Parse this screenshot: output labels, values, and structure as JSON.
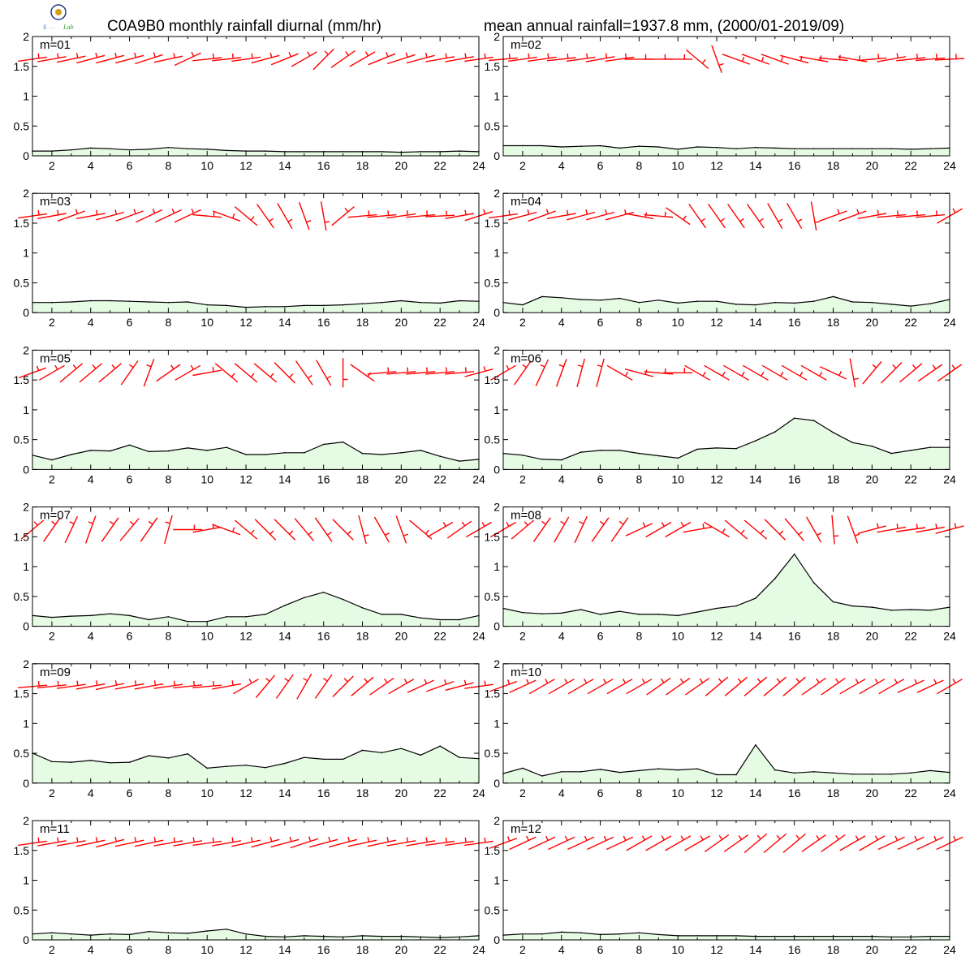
{
  "header": {
    "left_title": "C0A9B0 monthly rainfall diurnal (mm/hr)",
    "right_title": "mean annual rainfall=1937.8 mm, (2000/01-2019/09)"
  },
  "colors": {
    "rain_fill": "#e6fbe3",
    "rain_line": "#000000",
    "wind_barb": "#ff0000"
  },
  "chart_data": [
    {
      "type": "area",
      "label": "m=01",
      "x": [
        1,
        2,
        3,
        4,
        5,
        6,
        7,
        8,
        9,
        10,
        11,
        12,
        13,
        14,
        15,
        16,
        17,
        18,
        19,
        20,
        21,
        22,
        23,
        24
      ],
      "values": [
        0.08,
        0.08,
        0.1,
        0.13,
        0.12,
        0.1,
        0.11,
        0.14,
        0.12,
        0.11,
        0.09,
        0.08,
        0.08,
        0.07,
        0.07,
        0.07,
        0.07,
        0.07,
        0.07,
        0.06,
        0.07,
        0.07,
        0.08,
        0.07
      ],
      "wind_angle_deg": [
        8,
        10,
        12,
        15,
        15,
        15,
        18,
        12,
        25,
        6,
        6,
        8,
        15,
        22,
        30,
        45,
        35,
        30,
        22,
        18,
        15,
        10,
        10,
        8
      ],
      "xlim": [
        1,
        24
      ],
      "ylim": [
        0,
        2
      ]
    },
    {
      "type": "area",
      "label": "m=02",
      "x": [
        1,
        2,
        3,
        4,
        5,
        6,
        7,
        8,
        9,
        10,
        11,
        12,
        13,
        14,
        15,
        16,
        17,
        18,
        19,
        20,
        21,
        22,
        23,
        24
      ],
      "values": [
        0.17,
        0.17,
        0.17,
        0.15,
        0.16,
        0.17,
        0.13,
        0.16,
        0.15,
        0.11,
        0.15,
        0.14,
        0.12,
        0.14,
        0.13,
        0.12,
        0.12,
        0.12,
        0.12,
        0.12,
        0.12,
        0.11,
        0.12,
        0.13
      ],
      "wind_angle_deg": [
        5,
        8,
        8,
        6,
        8,
        10,
        8,
        0,
        0,
        0,
        -40,
        -70,
        -20,
        -20,
        -20,
        -15,
        -10,
        -5,
        -10,
        5,
        10,
        6,
        5,
        3
      ],
      "xlim": [
        1,
        24
      ],
      "ylim": [
        0,
        2
      ]
    },
    {
      "type": "area",
      "label": "m=03",
      "x": [
        1,
        2,
        3,
        4,
        5,
        6,
        7,
        8,
        9,
        10,
        11,
        12,
        13,
        14,
        15,
        16,
        17,
        18,
        19,
        20,
        21,
        22,
        23,
        24
      ],
      "values": [
        0.17,
        0.17,
        0.18,
        0.2,
        0.2,
        0.19,
        0.18,
        0.17,
        0.18,
        0.13,
        0.12,
        0.09,
        0.1,
        0.1,
        0.12,
        0.12,
        0.13,
        0.15,
        0.17,
        0.2,
        0.17,
        0.16,
        0.2,
        0.19
      ],
      "wind_angle_deg": [
        8,
        10,
        20,
        10,
        15,
        20,
        25,
        25,
        25,
        -5,
        -20,
        -40,
        -55,
        -60,
        -70,
        -80,
        40,
        5,
        5,
        8,
        5,
        3,
        10,
        18
      ],
      "xlim": [
        1,
        24
      ],
      "ylim": [
        0,
        2
      ]
    },
    {
      "type": "area",
      "label": "m=04",
      "x": [
        1,
        2,
        3,
        4,
        5,
        6,
        7,
        8,
        9,
        10,
        11,
        12,
        13,
        14,
        15,
        16,
        17,
        18,
        19,
        20,
        21,
        22,
        23,
        24
      ],
      "values": [
        0.17,
        0.13,
        0.27,
        0.25,
        0.22,
        0.21,
        0.24,
        0.17,
        0.21,
        0.16,
        0.19,
        0.19,
        0.14,
        0.13,
        0.17,
        0.16,
        0.19,
        0.27,
        0.18,
        0.17,
        0.14,
        0.11,
        0.15,
        0.22
      ],
      "wind_angle_deg": [
        8,
        15,
        20,
        10,
        15,
        15,
        15,
        -10,
        -5,
        -35,
        -55,
        -55,
        -55,
        -55,
        -60,
        -60,
        -80,
        20,
        20,
        10,
        5,
        5,
        5,
        30
      ],
      "xlim": [
        1,
        24
      ],
      "ylim": [
        0,
        2
      ]
    },
    {
      "type": "area",
      "label": "m=05",
      "x": [
        1,
        2,
        3,
        4,
        5,
        6,
        7,
        8,
        9,
        10,
        11,
        12,
        13,
        14,
        15,
        16,
        17,
        18,
        19,
        20,
        21,
        22,
        23,
        24
      ],
      "values": [
        0.24,
        0.16,
        0.25,
        0.32,
        0.31,
        0.41,
        0.3,
        0.31,
        0.36,
        0.32,
        0.37,
        0.25,
        0.25,
        0.28,
        0.28,
        0.42,
        0.46,
        0.27,
        0.25,
        0.28,
        0.32,
        0.22,
        0.14,
        0.17
      ],
      "wind_angle_deg": [
        20,
        30,
        40,
        40,
        40,
        55,
        70,
        35,
        30,
        10,
        -40,
        -40,
        -40,
        -45,
        -55,
        -60,
        -90,
        -35,
        5,
        5,
        5,
        5,
        5,
        15
      ],
      "xlim": [
        1,
        24
      ],
      "ylim": [
        0,
        2
      ]
    },
    {
      "type": "area",
      "label": "m=06",
      "x": [
        1,
        2,
        3,
        4,
        5,
        6,
        7,
        8,
        9,
        10,
        11,
        12,
        13,
        14,
        15,
        16,
        17,
        18,
        19,
        20,
        21,
        22,
        23,
        24
      ],
      "values": [
        0.27,
        0.24,
        0.17,
        0.16,
        0.29,
        0.32,
        0.32,
        0.27,
        0.23,
        0.19,
        0.34,
        0.36,
        0.35,
        0.48,
        0.63,
        0.86,
        0.82,
        0.62,
        0.45,
        0.39,
        0.27,
        0.32,
        0.37,
        0.37
      ],
      "wind_angle_deg": [
        30,
        55,
        65,
        70,
        75,
        75,
        -30,
        -15,
        -5,
        0,
        -30,
        -30,
        -30,
        -30,
        -30,
        -30,
        -30,
        -25,
        -80,
        50,
        45,
        40,
        35,
        35
      ],
      "xlim": [
        1,
        24
      ],
      "ylim": [
        0,
        2
      ]
    },
    {
      "type": "area",
      "label": "m=07",
      "x": [
        1,
        2,
        3,
        4,
        5,
        6,
        7,
        8,
        9,
        10,
        11,
        12,
        13,
        14,
        15,
        16,
        17,
        18,
        19,
        20,
        21,
        22,
        23,
        24
      ],
      "values": [
        0.18,
        0.15,
        0.17,
        0.18,
        0.21,
        0.18,
        0.11,
        0.16,
        0.08,
        0.08,
        0.16,
        0.16,
        0.2,
        0.35,
        0.48,
        0.57,
        0.45,
        0.31,
        0.2,
        0.2,
        0.14,
        0.11,
        0.11,
        0.18
      ],
      "wind_angle_deg": [
        40,
        55,
        65,
        70,
        55,
        50,
        55,
        75,
        0,
        10,
        -20,
        -40,
        -45,
        -45,
        -50,
        -55,
        -45,
        -75,
        -60,
        -70,
        -40,
        30,
        35,
        30
      ],
      "xlim": [
        1,
        24
      ],
      "ylim": [
        0,
        2
      ]
    },
    {
      "type": "area",
      "label": "m=08",
      "x": [
        1,
        2,
        3,
        4,
        5,
        6,
        7,
        8,
        9,
        10,
        11,
        12,
        13,
        14,
        15,
        16,
        17,
        18,
        19,
        20,
        21,
        22,
        23,
        24
      ],
      "values": [
        0.3,
        0.23,
        0.21,
        0.22,
        0.28,
        0.2,
        0.25,
        0.2,
        0.2,
        0.18,
        0.24,
        0.3,
        0.34,
        0.47,
        0.8,
        1.21,
        0.73,
        0.41,
        0.34,
        0.32,
        0.27,
        0.28,
        0.27,
        0.32
      ],
      "wind_angle_deg": [
        30,
        40,
        55,
        60,
        65,
        55,
        55,
        25,
        30,
        30,
        10,
        -30,
        -40,
        -40,
        -45,
        -50,
        -60,
        -85,
        -70,
        15,
        10,
        8,
        10,
        15
      ],
      "xlim": [
        1,
        24
      ],
      "ylim": [
        0,
        2
      ]
    },
    {
      "type": "area",
      "label": "m=09",
      "x": [
        1,
        2,
        3,
        4,
        5,
        6,
        7,
        8,
        9,
        10,
        11,
        12,
        13,
        14,
        15,
        16,
        17,
        18,
        19,
        20,
        21,
        22,
        23,
        24
      ],
      "values": [
        0.5,
        0.36,
        0.35,
        0.38,
        0.34,
        0.35,
        0.46,
        0.42,
        0.49,
        0.25,
        0.28,
        0.3,
        0.26,
        0.33,
        0.43,
        0.4,
        0.4,
        0.55,
        0.51,
        0.58,
        0.47,
        0.62,
        0.43,
        0.41
      ],
      "wind_angle_deg": [
        5,
        6,
        8,
        10,
        12,
        10,
        10,
        8,
        6,
        5,
        10,
        30,
        50,
        55,
        60,
        55,
        45,
        40,
        35,
        30,
        25,
        20,
        15,
        8
      ],
      "xlim": [
        1,
        24
      ],
      "ylim": [
        0,
        2
      ]
    },
    {
      "type": "area",
      "label": "m=10",
      "x": [
        1,
        2,
        3,
        4,
        5,
        6,
        7,
        8,
        9,
        10,
        11,
        12,
        13,
        14,
        15,
        16,
        17,
        18,
        19,
        20,
        21,
        22,
        23,
        24
      ],
      "values": [
        0.16,
        0.25,
        0.12,
        0.19,
        0.19,
        0.23,
        0.18,
        0.21,
        0.24,
        0.22,
        0.24,
        0.14,
        0.14,
        0.64,
        0.22,
        0.17,
        0.19,
        0.17,
        0.15,
        0.15,
        0.15,
        0.17,
        0.21,
        0.18
      ],
      "wind_angle_deg": [
        20,
        25,
        30,
        30,
        30,
        30,
        30,
        30,
        35,
        35,
        35,
        40,
        40,
        40,
        40,
        40,
        35,
        35,
        30,
        30,
        30,
        25,
        25,
        30
      ],
      "xlim": [
        1,
        24
      ],
      "ylim": [
        0,
        2
      ]
    },
    {
      "type": "area",
      "label": "m=11",
      "x": [
        1,
        2,
        3,
        4,
        5,
        6,
        7,
        8,
        9,
        10,
        11,
        12,
        13,
        14,
        15,
        16,
        17,
        18,
        19,
        20,
        21,
        22,
        23,
        24
      ],
      "values": [
        0.1,
        0.12,
        0.1,
        0.08,
        0.1,
        0.09,
        0.14,
        0.12,
        0.11,
        0.15,
        0.18,
        0.1,
        0.06,
        0.05,
        0.07,
        0.06,
        0.05,
        0.07,
        0.06,
        0.06,
        0.05,
        0.04,
        0.05,
        0.07
      ],
      "wind_angle_deg": [
        8,
        10,
        10,
        12,
        15,
        12,
        12,
        10,
        10,
        8,
        10,
        12,
        15,
        15,
        18,
        15,
        15,
        12,
        12,
        10,
        10,
        8,
        8,
        8
      ],
      "xlim": [
        1,
        24
      ],
      "ylim": [
        0,
        2
      ]
    },
    {
      "type": "area",
      "label": "m=12",
      "x": [
        1,
        2,
        3,
        4,
        5,
        6,
        7,
        8,
        9,
        10,
        11,
        12,
        13,
        14,
        15,
        16,
        17,
        18,
        19,
        20,
        21,
        22,
        23,
        24
      ],
      "values": [
        0.08,
        0.1,
        0.1,
        0.13,
        0.12,
        0.09,
        0.1,
        0.12,
        0.09,
        0.07,
        0.07,
        0.07,
        0.07,
        0.06,
        0.06,
        0.06,
        0.06,
        0.06,
        0.06,
        0.06,
        0.05,
        0.05,
        0.06,
        0.06
      ],
      "wind_angle_deg": [
        20,
        25,
        25,
        25,
        25,
        25,
        25,
        30,
        30,
        30,
        30,
        35,
        35,
        40,
        40,
        40,
        35,
        35,
        30,
        30,
        25,
        25,
        25,
        25
      ],
      "xlim": [
        1,
        24
      ],
      "ylim": [
        0,
        2
      ]
    }
  ]
}
